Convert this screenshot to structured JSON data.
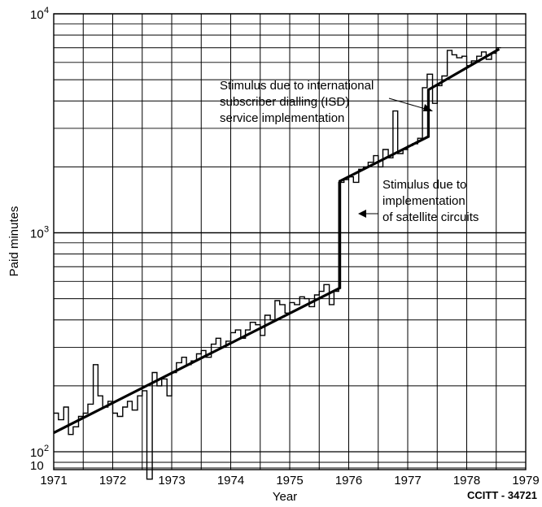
{
  "chart_data": {
    "type": "line",
    "title": "",
    "xlabel": "Year",
    "ylabel": "Paid minutes",
    "xlim": [
      1971,
      1979
    ],
    "ylim": [
      100,
      10000
    ],
    "y_scale": "log",
    "grid": true,
    "x_tick_labels": [
      "1971",
      "1972",
      "1973",
      "1974",
      "1975",
      "1976",
      "1977",
      "1978",
      "1979"
    ],
    "y_tick_labels": [
      {
        "base": "10",
        "exp": "2"
      },
      {
        "base": "10",
        "exp": "3"
      },
      {
        "base": "10",
        "exp": "4"
      }
    ],
    "y_extra_label": "10",
    "series": [
      {
        "style": "step",
        "x": [
          1971.0,
          1971.08,
          1971.17,
          1971.25,
          1971.33,
          1971.42,
          1971.5,
          1971.58,
          1971.67,
          1971.75,
          1971.83,
          1971.92,
          1972.0,
          1972.08,
          1972.17,
          1972.25,
          1972.33,
          1972.42,
          1972.5,
          1972.58,
          1972.67,
          1972.75,
          1972.83,
          1972.92,
          1973.0,
          1973.08,
          1973.17,
          1973.25,
          1973.33,
          1973.42,
          1973.5,
          1973.58,
          1973.67,
          1973.75,
          1973.83,
          1973.92,
          1974.0,
          1974.08,
          1974.17,
          1974.25,
          1974.33,
          1974.42,
          1974.5,
          1974.58,
          1974.67,
          1974.75,
          1974.83,
          1974.92,
          1975.0,
          1975.08,
          1975.17,
          1975.25,
          1975.33,
          1975.42,
          1975.5,
          1975.58,
          1975.67,
          1975.75,
          1975.83,
          1975.92,
          1976.0,
          1976.08,
          1976.17,
          1976.25,
          1976.33,
          1976.42,
          1976.5,
          1976.58,
          1976.67,
          1976.75,
          1976.83,
          1976.92,
          1977.0,
          1977.08,
          1977.17,
          1977.25,
          1977.33,
          1977.42,
          1977.5,
          1977.58,
          1977.67,
          1977.75,
          1977.83,
          1977.92,
          1978.0,
          1978.08,
          1978.17,
          1978.25,
          1978.33,
          1978.42,
          1978.5
        ],
        "values": [
          150,
          140,
          160,
          120,
          130,
          145,
          150,
          165,
          250,
          180,
          160,
          170,
          150,
          145,
          160,
          170,
          155,
          180,
          190,
          75,
          230,
          200,
          215,
          180,
          230,
          255,
          270,
          250,
          260,
          280,
          290,
          270,
          310,
          330,
          300,
          320,
          350,
          360,
          330,
          360,
          390,
          380,
          340,
          420,
          400,
          490,
          470,
          430,
          480,
          470,
          510,
          500,
          460,
          520,
          540,
          580,
          470,
          540,
          1700,
          1750,
          1800,
          1700,
          1950,
          2000,
          2100,
          2250,
          2000,
          2400,
          2200,
          3600,
          2300,
          2400,
          2500,
          2550,
          2700,
          4600,
          5300,
          3900,
          4700,
          5200,
          6800,
          6500,
          6300,
          6400,
          5800,
          6100,
          6400,
          6700,
          6200,
          6600,
          7000
        ]
      },
      {
        "style": "trend",
        "segments": [
          {
            "x": [
              1971.0,
              1975.85
            ],
            "values": [
              122,
              560
            ]
          },
          {
            "x": [
              1975.85,
              1977.35
            ],
            "values": [
              1720,
              2750
            ]
          },
          {
            "x": [
              1977.35,
              1978.55
            ],
            "values": [
              4500,
              6900
            ]
          }
        ]
      }
    ],
    "annotations": [
      {
        "lines": [
          "Stimulus due to international",
          "subscriber dialling (ISD)",
          "service implementation"
        ],
        "x": 1977.3,
        "y": 2800
      },
      {
        "lines": [
          "Stimulus due to",
          "implementation",
          "of satellite circuits"
        ],
        "x": 1975.9,
        "y": 1000
      }
    ]
  },
  "credit": "CCITT - 34721"
}
